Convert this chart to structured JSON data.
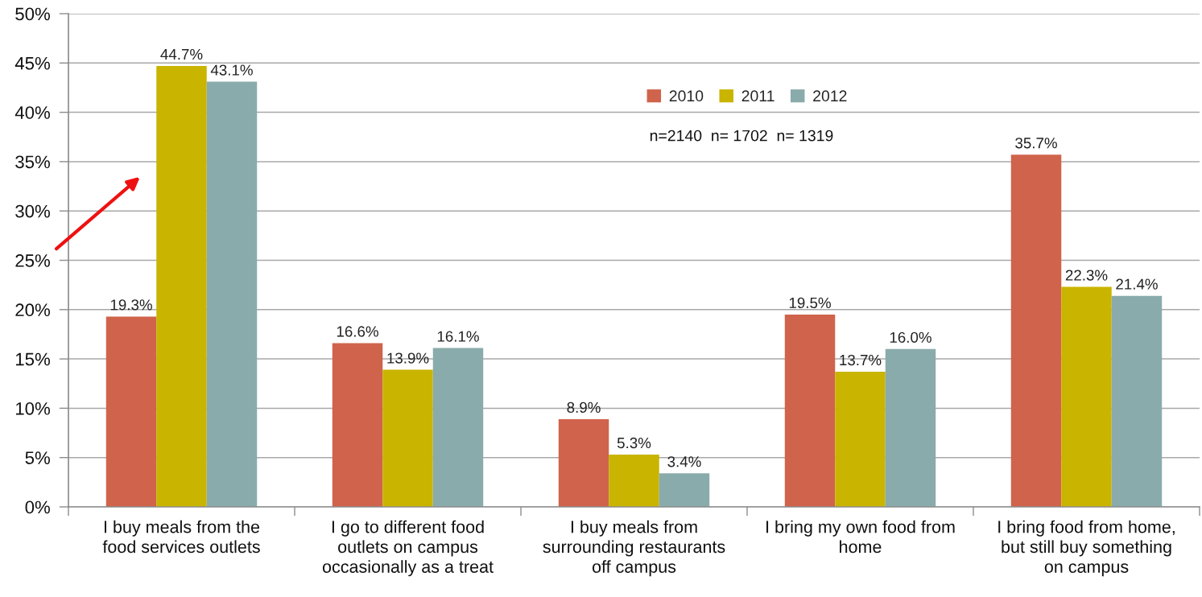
{
  "chart_data": {
    "type": "bar",
    "categories": [
      "I buy meals from the\nfood services outlets",
      "I go to different food\noutlets on campus\noccasionally as a treat",
      "I buy meals from\nsurrounding restaurants\noff campus",
      "I bring my own food from\nhome",
      "I bring food from home,\nbut still buy something\non campus"
    ],
    "series": [
      {
        "name": "2010",
        "color": "#d0634b",
        "values": [
          19.3,
          16.6,
          8.9,
          19.5,
          35.7
        ],
        "value_labels": [
          "19.3%",
          "16.6%",
          "8.9%",
          "19.5%",
          "35.7%"
        ]
      },
      {
        "name": "2011",
        "color": "#c9b400",
        "values": [
          44.7,
          13.9,
          5.3,
          13.7,
          22.3
        ],
        "value_labels": [
          "44.7%",
          "13.9%",
          "5.3%",
          "13.7%",
          "22.3%"
        ]
      },
      {
        "name": "2012",
        "color": "#8aabab",
        "values": [
          43.1,
          16.1,
          3.4,
          16.0,
          21.4
        ],
        "value_labels": [
          "43.1%",
          "16.1%",
          "3.4%",
          "16.0%",
          "21.4%"
        ]
      }
    ],
    "ylim": [
      0,
      50
    ],
    "yticks": [
      {
        "value": 0,
        "label": "0%"
      },
      {
        "value": 5,
        "label": "5%"
      },
      {
        "value": 10,
        "label": "10%"
      },
      {
        "value": 15,
        "label": "15%"
      },
      {
        "value": 20,
        "label": "20%"
      },
      {
        "value": 25,
        "label": "25%"
      },
      {
        "value": 30,
        "label": "30%"
      },
      {
        "value": 35,
        "label": "35%"
      },
      {
        "value": 40,
        "label": "40%"
      },
      {
        "value": 45,
        "label": "45%"
      },
      {
        "value": 50,
        "label": "50%"
      }
    ],
    "grid": "y",
    "legend": "top",
    "annotations": [
      "n=2140  n= 1702  n= 1319"
    ]
  }
}
